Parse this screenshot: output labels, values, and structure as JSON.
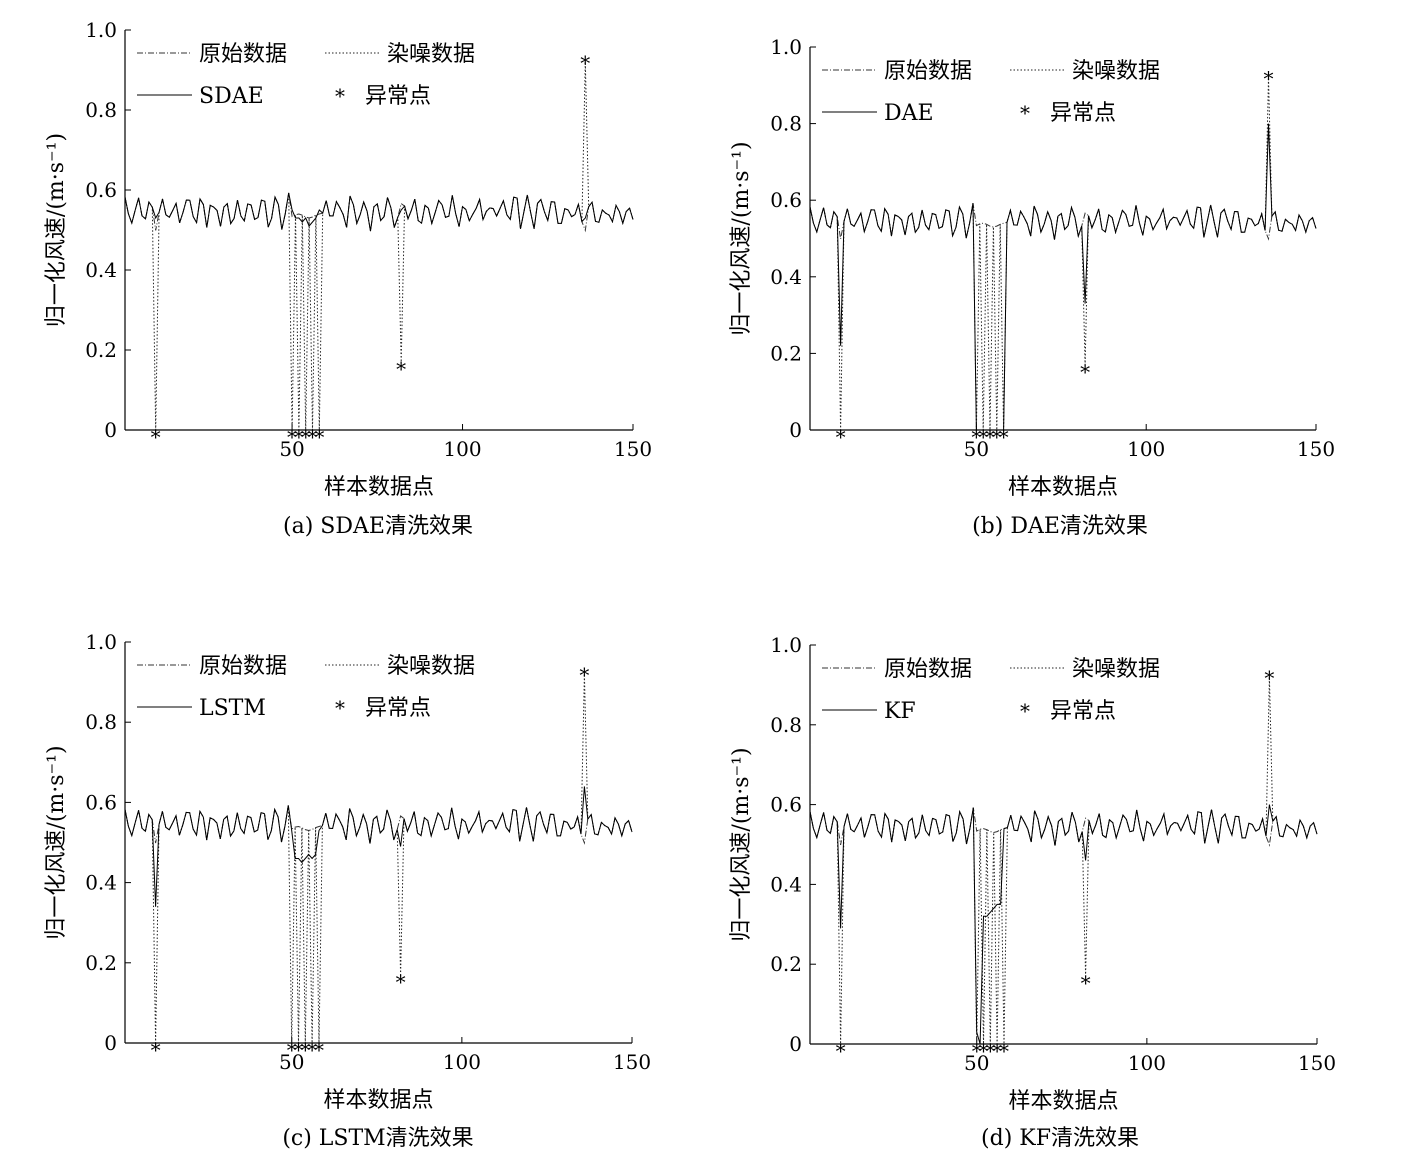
{
  "chart_data": [
    {
      "type": "line",
      "caption": "(a) SDAE清洗效果",
      "xlabel": "样本数据点",
      "ylabel": "归一化风速/(m·s⁻¹)",
      "xlim": [
        1,
        150
      ],
      "ylim": [
        0,
        1.0
      ],
      "xticks": [
        50,
        100,
        150
      ],
      "yticks": [
        0,
        0.2,
        0.4,
        0.6,
        0.8,
        1.0
      ],
      "ytick_labels": [
        "0",
        "0.2",
        "0.4",
        "0.6",
        "0.8",
        "1.0"
      ],
      "legend": [
        "原始数据",
        "染噪数据",
        "SDAE",
        "异常点"
      ],
      "legend_placement": "top-left",
      "anomalies": [
        {
          "x": 10,
          "y": 0.0
        },
        {
          "x": 50,
          "y": 0.0
        },
        {
          "x": 52,
          "y": 0.0
        },
        {
          "x": 54,
          "y": 0.0
        },
        {
          "x": 56,
          "y": 0.0
        },
        {
          "x": 58,
          "y": 0.0
        },
        {
          "x": 82,
          "y": 0.17
        },
        {
          "x": 136,
          "y": 0.92
        }
      ],
      "cleaned": [
        {
          "x": 10,
          "y": 0.53
        },
        {
          "x": 50,
          "y": 0.55
        },
        {
          "x": 51,
          "y": 0.53
        },
        {
          "x": 52,
          "y": 0.53
        },
        {
          "x": 53,
          "y": 0.52
        },
        {
          "x": 54,
          "y": 0.53
        },
        {
          "x": 55,
          "y": 0.51
        },
        {
          "x": 56,
          "y": 0.52
        },
        {
          "x": 57,
          "y": 0.53
        },
        {
          "x": 58,
          "y": 0.55
        },
        {
          "x": 82,
          "y": 0.55
        },
        {
          "x": 136,
          "y": 0.53
        }
      ]
    },
    {
      "type": "line",
      "caption": "(b) DAE清洗效果",
      "xlabel": "样本数据点",
      "ylabel": "归一化风速/(m·s⁻¹)",
      "xlim": [
        1,
        150
      ],
      "ylim": [
        0,
        1.0
      ],
      "xticks": [
        50,
        100,
        150
      ],
      "yticks": [
        0,
        0.2,
        0.4,
        0.6,
        0.8,
        1.0
      ],
      "ytick_labels": [
        "0",
        "0.2",
        "0.4",
        "0.6",
        "0.8",
        "1.0"
      ],
      "legend": [
        "原始数据",
        "染噪数据",
        "DAE",
        "异常点"
      ],
      "legend_placement": "top-left",
      "anomalies": [
        {
          "x": 10,
          "y": 0.0
        },
        {
          "x": 50,
          "y": 0.0
        },
        {
          "x": 52,
          "y": 0.0
        },
        {
          "x": 54,
          "y": 0.0
        },
        {
          "x": 56,
          "y": 0.0
        },
        {
          "x": 58,
          "y": 0.0
        },
        {
          "x": 82,
          "y": 0.17
        },
        {
          "x": 136,
          "y": 0.92
        }
      ],
      "cleaned": [
        {
          "x": 10,
          "y": 0.22
        },
        {
          "x": 50,
          "y": 0.0
        },
        {
          "x": 51,
          "y": 0.0
        },
        {
          "x": 52,
          "y": 0.0
        },
        {
          "x": 53,
          "y": 0.0
        },
        {
          "x": 54,
          "y": 0.0
        },
        {
          "x": 55,
          "y": 0.0
        },
        {
          "x": 56,
          "y": 0.0
        },
        {
          "x": 57,
          "y": 0.0
        },
        {
          "x": 58,
          "y": 0.0
        },
        {
          "x": 82,
          "y": 0.33
        },
        {
          "x": 136,
          "y": 0.8
        }
      ]
    },
    {
      "type": "line",
      "caption": "(c) LSTM清洗效果",
      "xlabel": "样本数据点",
      "ylabel": "归一化风速/(m·s⁻¹)",
      "xlim": [
        1,
        150
      ],
      "ylim": [
        0,
        1.0
      ],
      "xticks": [
        50,
        100,
        150
      ],
      "yticks": [
        0,
        0.2,
        0.4,
        0.6,
        0.8,
        1.0
      ],
      "ytick_labels": [
        "0",
        "0.2",
        "0.4",
        "0.6",
        "0.8",
        "1.0"
      ],
      "legend": [
        "原始数据",
        "染噪数据",
        "LSTM",
        "异常点"
      ],
      "legend_placement": "top-left",
      "anomalies": [
        {
          "x": 10,
          "y": 0.0
        },
        {
          "x": 50,
          "y": 0.0
        },
        {
          "x": 52,
          "y": 0.0
        },
        {
          "x": 54,
          "y": 0.0
        },
        {
          "x": 56,
          "y": 0.0
        },
        {
          "x": 58,
          "y": 0.0
        },
        {
          "x": 82,
          "y": 0.17
        },
        {
          "x": 136,
          "y": 0.92
        }
      ],
      "cleaned": [
        {
          "x": 10,
          "y": 0.34
        },
        {
          "x": 50,
          "y": 0.53
        },
        {
          "x": 51,
          "y": 0.46
        },
        {
          "x": 52,
          "y": 0.46
        },
        {
          "x": 53,
          "y": 0.45
        },
        {
          "x": 54,
          "y": 0.46
        },
        {
          "x": 55,
          "y": 0.47
        },
        {
          "x": 56,
          "y": 0.46
        },
        {
          "x": 57,
          "y": 0.47
        },
        {
          "x": 58,
          "y": 0.53
        },
        {
          "x": 82,
          "y": 0.49
        },
        {
          "x": 136,
          "y": 0.64
        }
      ]
    },
    {
      "type": "line",
      "caption": "(d) KF清洗效果",
      "xlabel": "样本数据点",
      "ylabel": "归一化风速/(m·s⁻¹)",
      "xlim": [
        1,
        150
      ],
      "ylim": [
        0,
        1.0
      ],
      "xticks": [
        50,
        100,
        150
      ],
      "yticks": [
        0,
        0.2,
        0.4,
        0.6,
        0.8,
        1.0
      ],
      "ytick_labels": [
        "0",
        "0.2",
        "0.4",
        "0.6",
        "0.8",
        "1.0"
      ],
      "legend": [
        "原始数据",
        "染噪数据",
        "KF",
        "异常点"
      ],
      "legend_placement": "top-left",
      "anomalies": [
        {
          "x": 10,
          "y": 0.0
        },
        {
          "x": 50,
          "y": 0.0
        },
        {
          "x": 52,
          "y": 0.0
        },
        {
          "x": 54,
          "y": 0.0
        },
        {
          "x": 56,
          "y": 0.0
        },
        {
          "x": 58,
          "y": 0.0
        },
        {
          "x": 82,
          "y": 0.17
        },
        {
          "x": 136,
          "y": 0.92
        }
      ],
      "cleaned": [
        {
          "x": 10,
          "y": 0.29
        },
        {
          "x": 50,
          "y": 0.03
        },
        {
          "x": 51,
          "y": 0.0
        },
        {
          "x": 52,
          "y": 0.32
        },
        {
          "x": 53,
          "y": 0.32
        },
        {
          "x": 54,
          "y": 0.33
        },
        {
          "x": 55,
          "y": 0.34
        },
        {
          "x": 56,
          "y": 0.35
        },
        {
          "x": 57,
          "y": 0.35
        },
        {
          "x": 58,
          "y": 0.54
        },
        {
          "x": 82,
          "y": 0.46
        },
        {
          "x": 136,
          "y": 0.6
        }
      ]
    }
  ]
}
